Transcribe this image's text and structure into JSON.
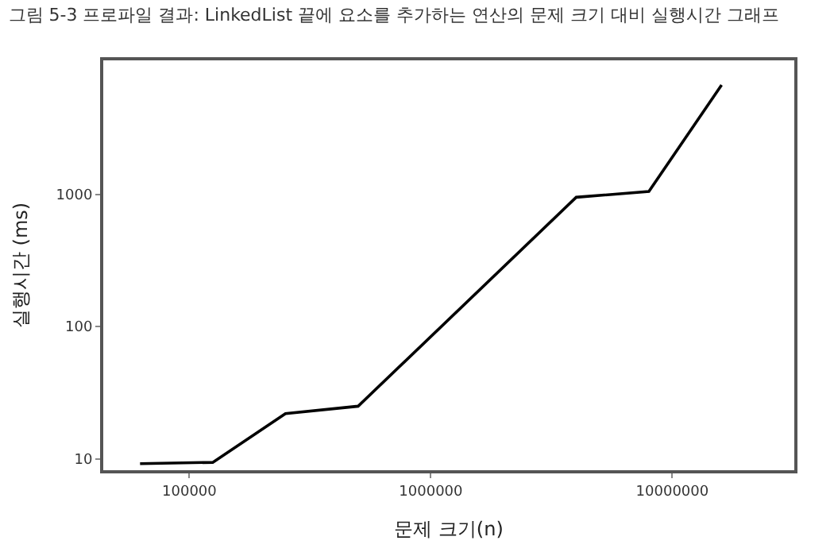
{
  "chart_data": {
    "type": "line",
    "title": "그림 5-3 프로파일 결과: LinkedList 끝에 요소를 추가하는 연산의 문제 크기 대비 실행시간 그래프",
    "xlabel": "문제 크기(n)",
    "ylabel": "실행시간 (ms)",
    "x": [
      62500,
      125000,
      250000,
      500000,
      4000000,
      8000000,
      16000000
    ],
    "series": [
      {
        "color": "#000000",
        "values": [
          9.2,
          9.4,
          22,
          25,
          950,
          1050,
          6700
        ]
      }
    ],
    "log": "xy",
    "xlim": [
      44000,
      32000000
    ],
    "ylim": [
      8.2,
      10300
    ],
    "xticks": [
      100000,
      1000000,
      10000000
    ],
    "yticks": [
      10,
      100,
      1000
    ],
    "marker": "none",
    "line_style": "solid"
  }
}
